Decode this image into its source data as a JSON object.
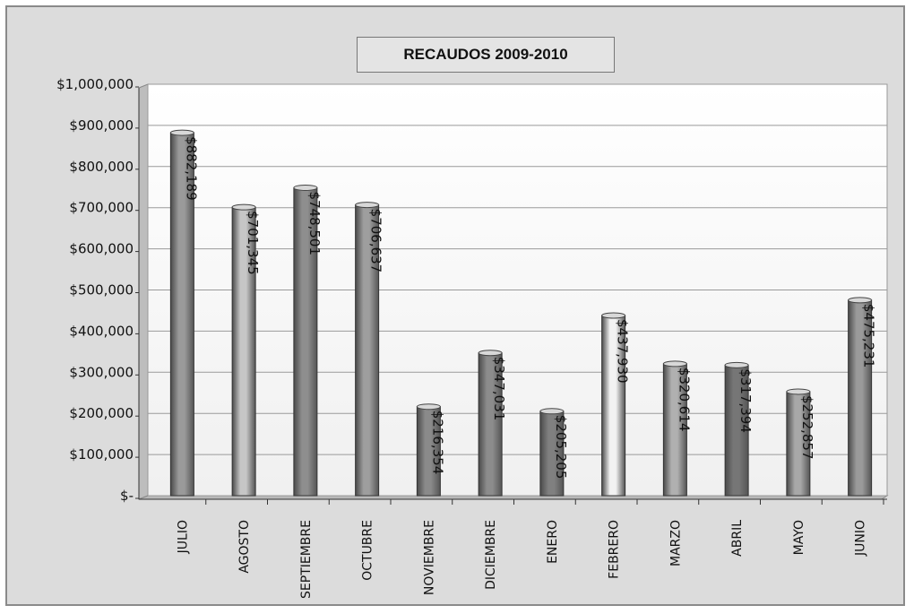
{
  "chart_data": {
    "type": "bar",
    "title": "RECAUDOS 2009-2010",
    "categories": [
      "JULIO",
      "AGOSTO",
      "SEPTIEMBRE",
      "OCTUBRE",
      "NOVIEMBRE",
      "DICIEMBRE",
      "ENERO",
      "FEBRERO",
      "MARZO",
      "ABRIL",
      "MAYO",
      "JUNIO"
    ],
    "values": [
      882189,
      701345,
      748501,
      706637,
      216354,
      347031,
      205205,
      437930,
      320614,
      317394,
      252857,
      475231
    ],
    "data_labels": [
      "$882,189",
      "$701,345",
      "$748,501",
      "$706,637",
      "$216,354",
      "$347,031",
      "$205,205",
      "$437,930",
      "$320,614",
      "$317,394",
      "$252,857",
      "$475,231"
    ],
    "bar_colors": [
      "#9a9a9a",
      "#c6c6c6",
      "#8e8e8e",
      "#9e9e9e",
      "#8a8a8a",
      "#8c8c8c",
      "#808080",
      "#f2f2f2",
      "#b0b0b0",
      "#767676",
      "#a8a8a8",
      "#9a9a9a"
    ],
    "ylim": [
      0,
      1000000
    ],
    "yticks": [
      0,
      100000,
      200000,
      300000,
      400000,
      500000,
      600000,
      700000,
      800000,
      900000,
      1000000
    ],
    "ytick_labels": [
      "$-",
      "$100,000",
      "$200,000",
      "$300,000",
      "$400,000",
      "$500,000",
      "$600,000",
      "$700,000",
      "$800,000",
      "$900,000",
      "$1,000,000"
    ],
    "grid": true,
    "legend": "none",
    "xlabel": "",
    "ylabel": ""
  }
}
